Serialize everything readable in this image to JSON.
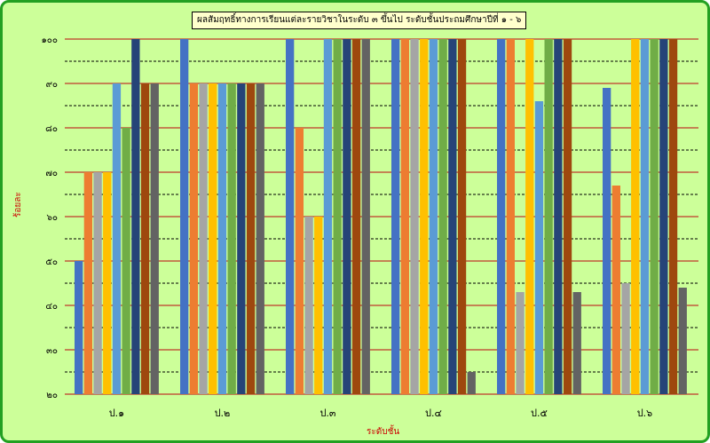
{
  "chart_data": {
    "type": "bar",
    "title": "ผลสัมฤทธิ์ทางการเรียนแต่ละรายวิชาในระดับ ๓ ขึ้นไป  ระดับชั้นประถมศึกษาปีที่ ๑ - ๖",
    "xlabel": "ระดับชั้น",
    "ylabel": "ร้อยละ",
    "ylim": [
      20,
      100
    ],
    "yticks": [
      20,
      30,
      40,
      50,
      60,
      70,
      80,
      90,
      100
    ],
    "ytick_labels": [
      "๒๐",
      "๓๐",
      "๔๐",
      "๕๐",
      "๖๐",
      "๗๐",
      "๘๐",
      "๙๐",
      "๑๐๐"
    ],
    "categories": [
      "ป.๑",
      "ป.๒",
      "ป.๓",
      "ป.๔",
      "ป.๕",
      "ป.๖"
    ],
    "series_colors": [
      "#4472c4",
      "#ed7d31",
      "#a5a5a5",
      "#ffc000",
      "#5b9bd5",
      "#70ad47",
      "#264478",
      "#9e480e",
      "#636363"
    ],
    "series": [
      {
        "values": [
          50,
          100,
          100,
          100,
          100,
          89
        ]
      },
      {
        "values": [
          70,
          90,
          80,
          100,
          100,
          67
        ]
      },
      {
        "values": [
          70,
          90,
          60,
          100,
          43,
          45
        ]
      },
      {
        "values": [
          70,
          90,
          60,
          100,
          100,
          100
        ]
      },
      {
        "values": [
          90,
          90,
          100,
          100,
          86,
          100
        ]
      },
      {
        "values": [
          80,
          90,
          100,
          100,
          100,
          100
        ]
      },
      {
        "values": [
          100,
          90,
          100,
          100,
          100,
          100
        ]
      },
      {
        "values": [
          90,
          90,
          100,
          100,
          100,
          100
        ]
      },
      {
        "values": [
          90,
          90,
          100,
          25,
          43,
          44
        ]
      }
    ],
    "grid": true,
    "legend": false
  },
  "colors": {
    "background": "#ccff99",
    "major_grid": "#c0392b",
    "minor_grid": "#000000",
    "frame": "#22a022"
  }
}
